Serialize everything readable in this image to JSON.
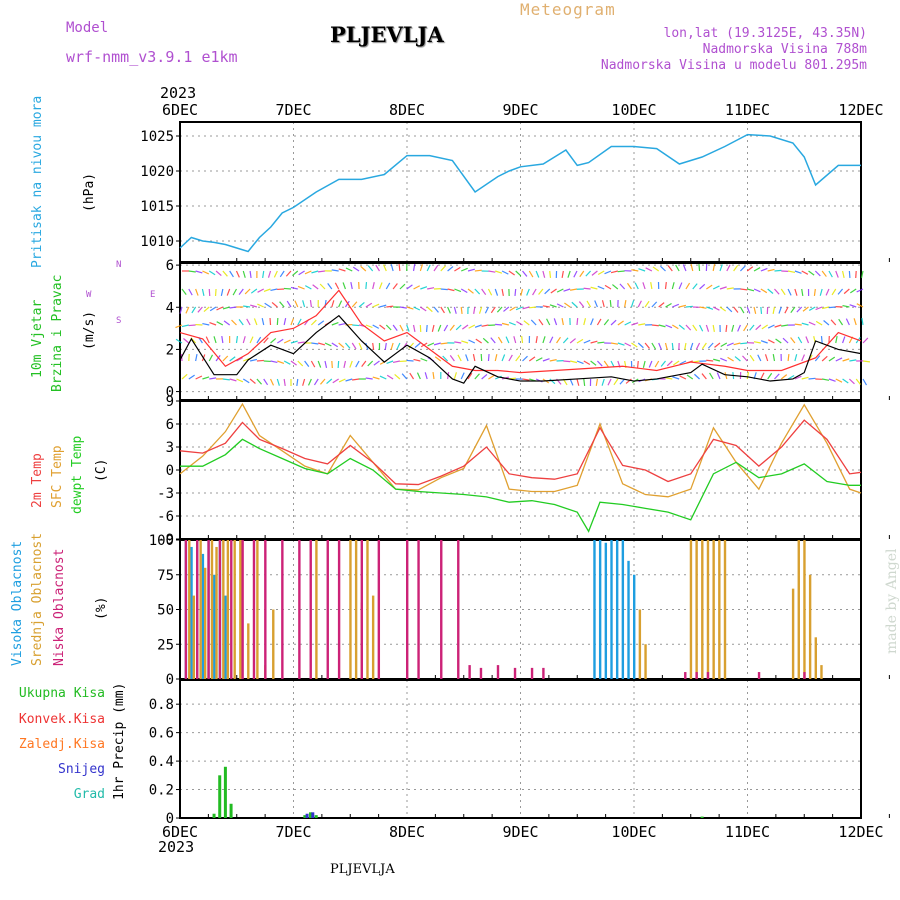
{
  "header": {
    "model_label": "Model",
    "model_name": "wrf-nmm_v3.9.1 e1km",
    "station": "PLJEVLJA",
    "meteogram": "Meteogram",
    "lonlat": "lon,lat (19.3125E, 43.35N)",
    "altitude": "Nadmorska Visina 788m",
    "model_altitude": "Nadmorska Visina u modelu 801.295m",
    "year_top": "2023",
    "year_bottom": "2023",
    "footer_station": "PLJEVLJA",
    "watermark": "made by Angel"
  },
  "colors": {
    "pressure": "#29a8e0",
    "wind_label": "#22c022",
    "wind_speed": "#000000",
    "gust": "#ff3030",
    "temp2m": "#ee4040",
    "sfc": "#e0a030",
    "dewpt": "#22cc22",
    "high_cloud": "#1e9ee0",
    "mid_cloud": "#d8a030",
    "low_cloud": "#cc2277",
    "total_precip": "#22bb22",
    "conv_precip": "#ee3333",
    "frozen_precip": "#ff7722",
    "snow": "#3333cc",
    "graupel": "#22bbaa",
    "model_text": "#b050d0",
    "meteogram_text": "#e0b070"
  },
  "chart_data": [
    {
      "type": "line",
      "panel": "pressure",
      "ylabel_left": "Pritisak na nivou mora",
      "ylabel_unit": "(hPa)",
      "x_ticks": [
        "6DEC",
        "7DEC",
        "8DEC",
        "9DEC",
        "10DEC",
        "11DEC",
        "12DEC"
      ],
      "ylim": [
        1007,
        1027
      ],
      "y_ticks": [
        1010,
        1015,
        1020,
        1025
      ],
      "grid": true,
      "series": [
        {
          "x": [
            0,
            0.1,
            0.2,
            0.3,
            0.4,
            0.5,
            0.6,
            0.7,
            0.8,
            0.9,
            1.0,
            1.2,
            1.4,
            1.6,
            1.8,
            2.0,
            2.2,
            2.4,
            2.6,
            2.8,
            2.9,
            3.0,
            3.2,
            3.4,
            3.5,
            3.6,
            3.8,
            4.0,
            4.2,
            4.4,
            4.6,
            4.8,
            5.0,
            5.2,
            5.4,
            5.5,
            5.6,
            5.8,
            6.0
          ],
          "values": [
            1009,
            1010.5,
            1010,
            1009.8,
            1009.5,
            1009,
            1008.5,
            1010.5,
            1012,
            1014,
            1014.8,
            1017,
            1018.8,
            1018.8,
            1019.5,
            1022.2,
            1022.2,
            1021.5,
            1017,
            1019.2,
            1020,
            1020.6,
            1021,
            1023,
            1020.8,
            1021.2,
            1023.5,
            1023.5,
            1023.2,
            1021,
            1022,
            1023.5,
            1025.2,
            1025,
            1024,
            1022,
            1018,
            1020.8,
            1020.8
          ]
        }
      ]
    },
    {
      "type": "line",
      "panel": "wind",
      "ylabel_left": [
        "10m Vjetar",
        "Brzina i Pravac"
      ],
      "ylabel_unit": "(m/s)",
      "compass": {
        "n": "N",
        "w": "W",
        "e": "E",
        "s": "S"
      },
      "ylim": [
        -0.4,
        6.1
      ],
      "y_ticks": [
        0,
        2,
        4,
        6
      ],
      "grid": true,
      "series": [
        {
          "name": "wind_speed",
          "x": [
            0,
            0.1,
            0.3,
            0.5,
            0.6,
            0.8,
            1.0,
            1.2,
            1.4,
            1.6,
            1.8,
            2.0,
            2.2,
            2.4,
            2.5,
            2.6,
            2.8,
            3.0,
            3.2,
            3.5,
            3.8,
            4.0,
            4.2,
            4.5,
            4.6,
            4.8,
            5.0,
            5.2,
            5.4,
            5.5,
            5.6,
            5.8,
            6.0
          ],
          "values": [
            1.5,
            2.5,
            0.8,
            0.8,
            1.5,
            2.2,
            1.8,
            2.8,
            3.6,
            2.4,
            1.4,
            2.2,
            1.6,
            0.6,
            0.4,
            1.2,
            0.7,
            0.5,
            0.5,
            0.6,
            0.7,
            0.5,
            0.6,
            0.9,
            1.3,
            0.8,
            0.7,
            0.5,
            0.6,
            0.9,
            2.4,
            2.0,
            1.8
          ]
        },
        {
          "name": "gust",
          "x": [
            0,
            0.2,
            0.4,
            0.6,
            0.8,
            1.0,
            1.2,
            1.4,
            1.6,
            1.8,
            2.0,
            2.2,
            2.4,
            2.6,
            2.8,
            3.0,
            3.3,
            3.6,
            3.9,
            4.2,
            4.5,
            4.8,
            5.0,
            5.3,
            5.6,
            5.8,
            6.0
          ],
          "values": [
            2.8,
            2.5,
            1.2,
            1.8,
            2.8,
            3.0,
            3.6,
            4.8,
            3.2,
            2.4,
            2.8,
            2.0,
            1.2,
            1.0,
            1.0,
            0.9,
            1.0,
            1.1,
            1.2,
            1.0,
            1.4,
            1.2,
            1.0,
            1.0,
            1.6,
            2.8,
            2.4
          ]
        }
      ]
    },
    {
      "type": "line",
      "panel": "temperature",
      "ylabel_left": [
        "2m Temp",
        "SFC Temp",
        "dewpt Temp"
      ],
      "ylabel_unit": "(C)",
      "ylim": [
        -9,
        9
      ],
      "y_ticks": [
        -9,
        -6,
        -3,
        0,
        3,
        6,
        9
      ],
      "grid": true,
      "series": [
        {
          "name": "2m Temp",
          "x": [
            0,
            0.2,
            0.4,
            0.55,
            0.7,
            0.9,
            1.1,
            1.3,
            1.5,
            1.7,
            1.9,
            2.1,
            2.3,
            2.5,
            2.7,
            2.9,
            3.1,
            3.3,
            3.5,
            3.7,
            3.9,
            4.1,
            4.3,
            4.5,
            4.7,
            4.9,
            5.1,
            5.3,
            5.5,
            5.7,
            5.9,
            6.0
          ],
          "values": [
            2.5,
            2.2,
            3.5,
            6.2,
            4.0,
            2.8,
            1.5,
            0.8,
            3.2,
            1.0,
            -1.8,
            -1.9,
            -0.8,
            0.5,
            3.0,
            -0.5,
            -1.0,
            -1.2,
            -0.5,
            5.5,
            0.6,
            0.0,
            -1.5,
            -0.5,
            4.0,
            3.2,
            0.5,
            3.0,
            6.5,
            4.0,
            -0.5,
            -0.3
          ]
        },
        {
          "name": "SFC Temp",
          "x": [
            0,
            0.2,
            0.4,
            0.55,
            0.7,
            0.9,
            1.1,
            1.3,
            1.5,
            1.7,
            1.9,
            2.1,
            2.3,
            2.5,
            2.7,
            2.9,
            3.1,
            3.3,
            3.5,
            3.7,
            3.9,
            4.1,
            4.3,
            4.5,
            4.7,
            4.9,
            5.1,
            5.3,
            5.5,
            5.7,
            5.9,
            6.0
          ],
          "values": [
            -0.5,
            1.8,
            5.0,
            8.6,
            4.5,
            2.5,
            0.5,
            -0.5,
            4.5,
            1.0,
            -2.5,
            -2.6,
            -1.0,
            0.2,
            5.8,
            -2.5,
            -2.8,
            -2.8,
            -2.0,
            6.0,
            -1.8,
            -3.2,
            -3.5,
            -2.5,
            5.5,
            1.0,
            -2.5,
            3.5,
            8.5,
            3.5,
            -2.5,
            -3.0
          ]
        },
        {
          "name": "dewpt Temp",
          "x": [
            0,
            0.2,
            0.4,
            0.55,
            0.7,
            0.9,
            1.1,
            1.3,
            1.5,
            1.7,
            1.9,
            2.1,
            2.3,
            2.5,
            2.7,
            2.9,
            3.1,
            3.3,
            3.5,
            3.6,
            3.7,
            3.9,
            4.1,
            4.3,
            4.5,
            4.7,
            4.9,
            5.1,
            5.3,
            5.5,
            5.7,
            5.9,
            6.0
          ],
          "values": [
            0.5,
            0.5,
            2.0,
            4.0,
            2.8,
            1.5,
            0.2,
            -0.5,
            1.5,
            0.0,
            -2.5,
            -2.8,
            -3.0,
            -3.2,
            -3.5,
            -4.2,
            -4.0,
            -4.5,
            -5.5,
            -8.0,
            -4.2,
            -4.5,
            -5.0,
            -5.5,
            -6.5,
            -0.5,
            1.0,
            -1.0,
            -0.5,
            0.8,
            -1.5,
            -2.0,
            -2.0
          ]
        }
      ]
    },
    {
      "type": "bar",
      "panel": "cloud",
      "ylabel_left": [
        "Visoka Oblacnost",
        "Srednja Oblacnost",
        "Niska Oblacnost"
      ],
      "ylabel_unit": "(%)",
      "ylim": [
        0,
        100
      ],
      "y_ticks": [
        0,
        25,
        50,
        75,
        100
      ],
      "grid": true,
      "series": [
        {
          "name": "Visoka Oblacnost",
          "x": [
            0.05,
            0.1,
            0.15,
            0.2,
            0.25,
            0.3,
            0.35,
            0.4,
            3.65,
            3.7,
            3.75,
            3.8,
            3.85,
            3.9,
            3.95,
            4.0
          ],
          "values": [
            100,
            95,
            100,
            90,
            100,
            75,
            100,
            60,
            100,
            100,
            98,
            100,
            100,
            100,
            85,
            75
          ]
        },
        {
          "name": "Srednja Oblacnost",
          "x": [
            0.08,
            0.12,
            0.18,
            0.22,
            0.28,
            0.32,
            0.38,
            0.42,
            0.48,
            0.53,
            0.6,
            0.68,
            0.75,
            0.82,
            1.2,
            1.5,
            1.55,
            1.6,
            1.65,
            1.7,
            4.05,
            4.1,
            4.5,
            4.55,
            4.6,
            4.65,
            4.7,
            4.75,
            4.8,
            5.4,
            5.45,
            5.5,
            5.55,
            5.6,
            5.65
          ],
          "values": [
            100,
            60,
            100,
            80,
            100,
            95,
            100,
            100,
            100,
            100,
            40,
            100,
            10,
            50,
            100,
            100,
            100,
            55,
            100,
            60,
            50,
            25,
            100,
            100,
            100,
            100,
            100,
            100,
            100,
            65,
            100,
            100,
            75,
            30,
            10
          ]
        },
        {
          "name": "Niska Oblacnost",
          "x": [
            0.05,
            0.15,
            0.25,
            0.35,
            0.45,
            0.55,
            0.65,
            0.75,
            0.9,
            1.05,
            1.15,
            1.3,
            1.4,
            1.6,
            1.75,
            2.0,
            2.1,
            2.3,
            2.45,
            2.55,
            2.65,
            2.8,
            2.95,
            3.1,
            3.2,
            4.45,
            4.55,
            4.65,
            5.1,
            5.5
          ],
          "values": [
            100,
            100,
            100,
            100,
            100,
            100,
            100,
            100,
            100,
            100,
            100,
            100,
            100,
            100,
            100,
            100,
            100,
            100,
            100,
            10,
            8,
            10,
            8,
            8,
            8,
            5,
            5,
            5,
            5,
            5
          ]
        }
      ]
    },
    {
      "type": "bar",
      "panel": "precipitation",
      "ylabel_left": [
        "Ukupna Kisa",
        "Konvek.Kisa",
        "Zaledj.Kisa",
        "Snijeg",
        "Grad"
      ],
      "ylabel_unit": "1hr Precip (mm)",
      "ylim": [
        0,
        0.97
      ],
      "y_ticks": [
        0,
        0.2,
        0.4,
        0.6,
        0.8
      ],
      "grid": true,
      "series": [
        {
          "name": "Ukupna Kisa",
          "x": [
            0.3,
            0.35,
            0.4,
            0.45,
            1.1,
            1.15,
            1.2,
            4.6
          ],
          "values": [
            0.03,
            0.3,
            0.36,
            0.1,
            0.02,
            0.04,
            0.02,
            0.01
          ]
        },
        {
          "name": "Snijeg",
          "x": [
            1.12,
            1.17
          ],
          "values": [
            0.03,
            0.04
          ]
        }
      ]
    }
  ]
}
